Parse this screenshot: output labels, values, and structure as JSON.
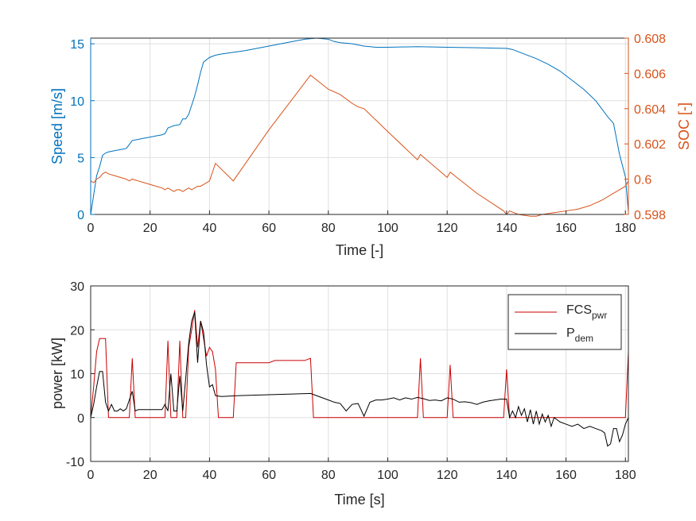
{
  "chart_data": [
    {
      "type": "line",
      "xlabel": "Time [-]",
      "ylabel": "Speed [m/s]",
      "ylabel_right": "SOC [-]",
      "xlim": [
        0,
        181
      ],
      "ylim": [
        0,
        15.5
      ],
      "ylim_right": [
        0.598,
        0.608
      ],
      "xticks": [
        "0",
        "20",
        "40",
        "60",
        "80",
        "100",
        "120",
        "140",
        "160",
        "180"
      ],
      "yticks": [
        "0",
        "5",
        "10",
        "15"
      ],
      "yticks_right": [
        "0.598",
        "0.6",
        "0.602",
        "0.604",
        "0.606",
        "0.608"
      ],
      "grid": true,
      "colors": {
        "speed": "#0072BD",
        "soc": "#D95319"
      },
      "series": [
        {
          "axis": "left",
          "x": [
            0,
            2,
            3,
            4,
            5,
            6,
            8,
            10,
            12,
            14,
            16,
            18,
            20,
            22,
            24,
            25,
            26,
            27,
            28,
            30,
            31,
            32,
            33,
            34,
            35,
            36,
            37,
            38,
            40,
            42,
            44,
            48,
            52,
            56,
            60,
            64,
            68,
            72,
            76,
            80,
            82,
            84,
            88,
            92,
            96,
            100,
            110,
            120,
            130,
            139,
            140,
            142,
            144,
            146,
            150,
            154,
            158,
            162,
            166,
            170,
            174,
            176,
            178,
            180,
            181
          ],
          "values": [
            0.0,
            3.4,
            4.2,
            5.2,
            5.4,
            5.5,
            5.6,
            5.7,
            5.8,
            6.5,
            6.6,
            6.7,
            6.8,
            6.9,
            7.0,
            7.1,
            7.6,
            7.7,
            7.8,
            7.9,
            8.4,
            8.4,
            8.8,
            9.6,
            10.4,
            11.4,
            12.5,
            13.4,
            13.8,
            14.0,
            14.1,
            14.25,
            14.4,
            14.6,
            14.8,
            15.0,
            15.2,
            15.4,
            15.5,
            15.4,
            15.2,
            15.1,
            15.0,
            14.8,
            14.7,
            14.7,
            14.75,
            14.7,
            14.65,
            14.6,
            14.6,
            14.5,
            14.3,
            14.1,
            13.7,
            13.2,
            12.6,
            11.8,
            11.0,
            10.0,
            8.6,
            8.0,
            5.3,
            3.3,
            0.2
          ]
        },
        {
          "axis": "right",
          "x": [
            0,
            1,
            2,
            3,
            4,
            5,
            6,
            8,
            10,
            12,
            13,
            14,
            16,
            18,
            20,
            22,
            24,
            25,
            26,
            27,
            28,
            29,
            30,
            31,
            32,
            33,
            34,
            35,
            36,
            37,
            38,
            40,
            42,
            48,
            60,
            74,
            80,
            84,
            88,
            90,
            92,
            100,
            110,
            111,
            120,
            121,
            130,
            139,
            140,
            141,
            144,
            148,
            150,
            152,
            156,
            160,
            164,
            168,
            172,
            176,
            178,
            180,
            181
          ],
          "values": [
            0.5999,
            0.5998,
            0.6,
            0.6001,
            0.6003,
            0.6004,
            0.6003,
            0.6002,
            0.6001,
            0.6,
            0.5999,
            0.6,
            0.5999,
            0.5998,
            0.5997,
            0.5996,
            0.5995,
            0.5994,
            0.5995,
            0.5994,
            0.5993,
            0.5994,
            0.5994,
            0.5993,
            0.5994,
            0.5995,
            0.5994,
            0.5995,
            0.5996,
            0.5996,
            0.5997,
            0.5999,
            0.6009,
            0.5999,
            0.6028,
            0.6059,
            0.6051,
            0.6048,
            0.6043,
            0.6041,
            0.604,
            0.6027,
            0.6011,
            0.6014,
            0.6001,
            0.6004,
            0.5992,
            0.5982,
            0.598,
            0.5982,
            0.598,
            0.5979,
            0.5979,
            0.598,
            0.5981,
            0.5982,
            0.5983,
            0.5985,
            0.5988,
            0.5992,
            0.5994,
            0.5996,
            0.5999
          ]
        }
      ]
    },
    {
      "type": "line",
      "xlabel": "Time [s]",
      "ylabel": "power [kW]",
      "xlim": [
        0,
        181
      ],
      "ylim": [
        -10,
        30
      ],
      "xticks": [
        "0",
        "20",
        "40",
        "60",
        "80",
        "100",
        "120",
        "140",
        "160",
        "180"
      ],
      "yticks": [
        "-10",
        "0",
        "10",
        "20",
        "30"
      ],
      "grid": true,
      "legend": "top-right",
      "legend_entries": [
        {
          "name": "FCS",
          "sub": "pwr",
          "color": "#CC0000"
        },
        {
          "name": "P",
          "sub": "dem",
          "color": "#000000"
        }
      ],
      "series": [
        {
          "name": "FCS_pwr",
          "x": [
            0,
            1,
            2,
            3,
            4,
            5,
            6,
            13,
            14,
            15,
            25,
            26,
            27,
            29,
            30,
            31,
            32,
            33,
            34,
            35,
            36,
            37,
            38,
            39,
            40,
            41,
            42,
            43,
            44,
            48,
            49,
            60,
            62,
            72,
            74,
            75,
            110,
            111,
            112,
            120,
            121,
            122,
            139,
            140,
            141,
            180,
            181
          ],
          "values": [
            0.0,
            7.0,
            15.0,
            18.0,
            18.0,
            18.0,
            0.0,
            0.0,
            13.5,
            0.0,
            0.0,
            17.5,
            0.0,
            0.0,
            17.5,
            0.0,
            0.0,
            16.0,
            20.0,
            24.5,
            16.0,
            22.0,
            18.0,
            14.0,
            16.0,
            15.0,
            11.0,
            0.0,
            0.0,
            0.0,
            12.5,
            12.5,
            13.0,
            13.0,
            13.5,
            0.0,
            0.0,
            13.5,
            0.0,
            0.0,
            12.0,
            0.0,
            0.0,
            11.0,
            0.0,
            0.0,
            15.0
          ]
        },
        {
          "name": "P_dem",
          "x": [
            0,
            1,
            2,
            3,
            4,
            5,
            6,
            7,
            8,
            9,
            10,
            11,
            12,
            13,
            14,
            15,
            16,
            20,
            24,
            25,
            26,
            27,
            28,
            29,
            30,
            31,
            32,
            33,
            34,
            35,
            36,
            37,
            38,
            39,
            40,
            41,
            42,
            44,
            50,
            60,
            70,
            74,
            76,
            78,
            80,
            82,
            84,
            86,
            88,
            90,
            91,
            92,
            94,
            96,
            98,
            100,
            102,
            104,
            106,
            108,
            110,
            112,
            114,
            116,
            118,
            120,
            122,
            124,
            126,
            128,
            130,
            132,
            134,
            136,
            138,
            140,
            141,
            142,
            143,
            144,
            145,
            146,
            147,
            148,
            149,
            150,
            151,
            152,
            153,
            154,
            155,
            156,
            158,
            160,
            162,
            164,
            166,
            168,
            170,
            172,
            173,
            174,
            175,
            176,
            177,
            178,
            179,
            180,
            181
          ],
          "values": [
            0.0,
            3.0,
            7.0,
            10.5,
            10.5,
            3.5,
            1.5,
            3.0,
            1.5,
            1.5,
            2.0,
            1.5,
            2.0,
            4.0,
            6.0,
            1.5,
            1.8,
            1.8,
            1.8,
            3.0,
            1.5,
            10.0,
            1.5,
            1.5,
            9.5,
            1.5,
            9.0,
            17.0,
            22.0,
            24.0,
            12.5,
            22.0,
            19.5,
            12.0,
            7.0,
            7.5,
            5.0,
            4.8,
            5.0,
            5.2,
            5.4,
            5.5,
            5.0,
            4.5,
            4.0,
            3.5,
            3.2,
            1.5,
            3.0,
            3.2,
            1.8,
            0.3,
            3.5,
            4.0,
            4.0,
            4.2,
            4.5,
            4.0,
            4.5,
            4.2,
            4.6,
            4.3,
            3.9,
            4.0,
            3.8,
            4.5,
            4.2,
            3.5,
            3.6,
            3.4,
            3.0,
            3.5,
            3.8,
            4.0,
            4.2,
            4.2,
            0.0,
            1.5,
            0.0,
            2.5,
            0.5,
            2.0,
            -1.0,
            1.8,
            -1.5,
            1.5,
            -1.5,
            0.8,
            -1.0,
            0.5,
            -2.0,
            0.0,
            -1.0,
            -1.5,
            -2.0,
            -1.5,
            -2.5,
            -2.0,
            -2.5,
            -3.0,
            -3.5,
            -6.5,
            -6.0,
            -2.5,
            -2.5,
            -5.5,
            -4.0,
            -1.5,
            0.0
          ]
        }
      ]
    }
  ]
}
